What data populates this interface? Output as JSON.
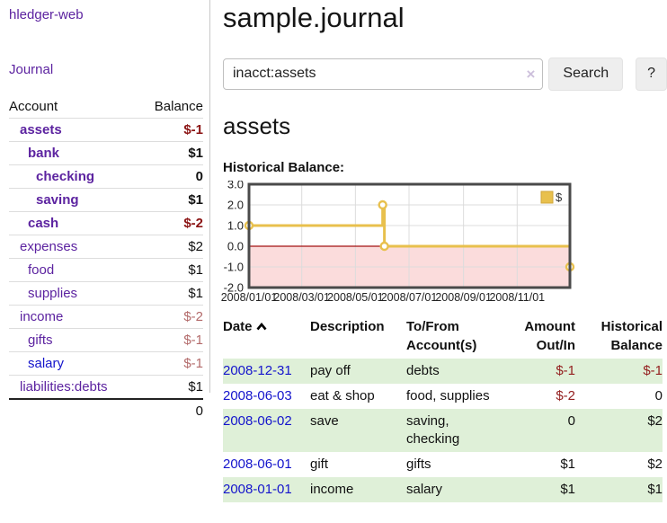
{
  "sidebar": {
    "brand": "hledger-web",
    "journal_link": "Journal",
    "accounts": {
      "header": {
        "account": "Account",
        "balance": "Balance"
      },
      "rows": [
        {
          "name": "assets",
          "balance": "$-1"
        },
        {
          "name": "bank",
          "balance": "$1"
        },
        {
          "name": "checking",
          "balance": "0"
        },
        {
          "name": "saving",
          "balance": "$1"
        },
        {
          "name": "cash",
          "balance": "$-2"
        },
        {
          "name": "expenses",
          "balance": "$2"
        },
        {
          "name": "food",
          "balance": "$1"
        },
        {
          "name": "supplies",
          "balance": "$1"
        },
        {
          "name": "income",
          "balance": "$-2"
        },
        {
          "name": "gifts",
          "balance": "$-1"
        },
        {
          "name": "salary",
          "balance": "$-1"
        },
        {
          "name": "liabilities:debts",
          "balance": "$1"
        }
      ],
      "total": "0"
    }
  },
  "main": {
    "title": "sample.journal",
    "search": {
      "query": "inacct:assets",
      "clear_icon": "×",
      "button": "Search",
      "help_button": "?"
    },
    "account_heading": "assets",
    "chart_label": "Historical Balance:"
  },
  "chart_data": {
    "type": "line",
    "title": "Historical Balance",
    "step": true,
    "series": [
      {
        "name": "$",
        "points": [
          [
            "2008-01-01",
            1
          ],
          [
            "2008-06-01",
            2
          ],
          [
            "2008-06-03",
            0
          ],
          [
            "2008-12-31",
            -1
          ]
        ]
      }
    ],
    "xlim": [
      "2008-01-01",
      "2008-12-31"
    ],
    "ylim": [
      -2,
      3
    ],
    "x_ticks": [
      "2008/01/01",
      "2008/03/01",
      "2008/05/01",
      "2008/07/01",
      "2008/09/01",
      "2008/11/01"
    ],
    "y_ticks": [
      "3.0",
      "2.0",
      "1.0",
      "0.0",
      "-1.0",
      "-2.0"
    ],
    "grid": true,
    "legend_position": "top-right",
    "negative_region_shaded": true,
    "colors": {
      "line": "#e8c04d",
      "marker_fill": "#ffffff",
      "negative_fill": "#fbdcdc",
      "zero_line": "#a31111",
      "border": "#4a4a4a",
      "grid": "#dcdcdc",
      "legend_border": "#cfa63b",
      "tick_text": "#222222"
    }
  },
  "register": {
    "headers": {
      "date": "Date",
      "description": "Description",
      "tofrom": "To/From Account(s)",
      "amount": "Amount Out/In",
      "balance": "Historical Balance"
    },
    "rows": [
      {
        "date": "2008-12-31",
        "description": "pay off",
        "accounts": "debts",
        "amount": "$-1",
        "balance": "$-1"
      },
      {
        "date": "2008-06-03",
        "description": "eat & shop",
        "accounts": "food, supplies",
        "amount": "$-2",
        "balance": "0"
      },
      {
        "date": "2008-06-02",
        "description": "save",
        "accounts": "saving, checking",
        "amount": "0",
        "balance": "$2"
      },
      {
        "date": "2008-06-01",
        "description": "gift",
        "accounts": "gifts",
        "amount": "$1",
        "balance": "$2"
      },
      {
        "date": "2008-01-01",
        "description": "income",
        "accounts": "salary",
        "amount": "$1",
        "balance": "$1"
      }
    ]
  }
}
